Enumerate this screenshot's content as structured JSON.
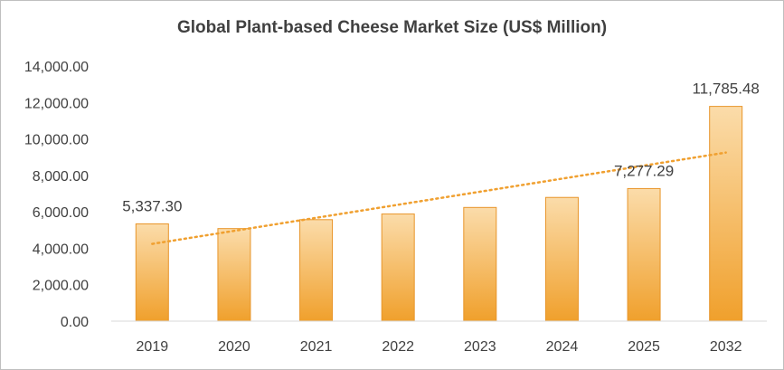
{
  "chart_data": {
    "type": "bar",
    "title": "Global Plant-based Cheese Market Size (US$ Million)",
    "xlabel": "",
    "ylabel": "",
    "categories": [
      "2019",
      "2020",
      "2021",
      "2022",
      "2023",
      "2024",
      "2025",
      "2032"
    ],
    "values": [
      5337.3,
      5080,
      5570,
      5880,
      6240,
      6790,
      7277.29,
      11785.48
    ],
    "data_labels": {
      "0": "5,337.30",
      "6": "7,277.29",
      "7": "11,785.48"
    },
    "ylim": [
      0,
      14000
    ],
    "yticks": [
      0,
      2000,
      4000,
      6000,
      8000,
      10000,
      12000,
      14000
    ],
    "ytick_labels": [
      "0.00",
      "2,000.00",
      "4,000.00",
      "6,000.00",
      "8,000.00",
      "10,000.00",
      "12,000.00",
      "14,000.00"
    ],
    "grid": false,
    "legend": "none",
    "trendline": {
      "type": "linear",
      "style": "dotted"
    },
    "colors": {
      "bar_top": "#fbdcaa",
      "bar_bottom": "#f0a02c",
      "bar_edge": "#e8952a",
      "trendline": "#f0a030"
    }
  }
}
